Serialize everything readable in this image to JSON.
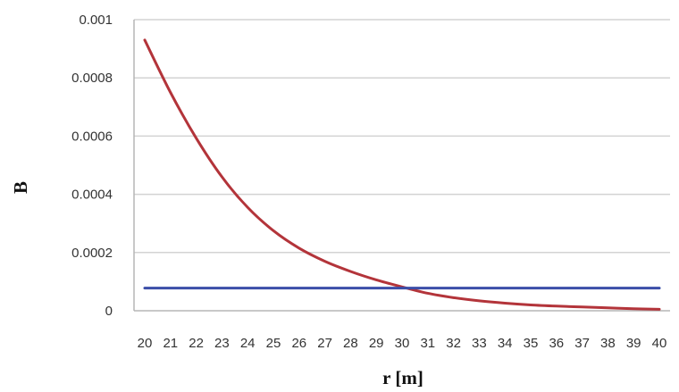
{
  "chart_data": {
    "type": "line",
    "xlabel": "r [m]",
    "ylabel": "B",
    "categories": [
      "20",
      "21",
      "22",
      "23",
      "24",
      "25",
      "26",
      "27",
      "28",
      "29",
      "30",
      "31",
      "32",
      "33",
      "34",
      "35",
      "36",
      "37",
      "38",
      "39",
      "40"
    ],
    "ylim": [
      0,
      0.001
    ],
    "yticks": [
      "0",
      "0.0002",
      "0.0004",
      "0.0006",
      "0.0008",
      "0.001"
    ],
    "grid": true,
    "legend": "none",
    "series": [
      {
        "color": "#b3343a",
        "values": [
          0.00093,
          0.00075,
          0.000593,
          0.00046,
          0.000355,
          0.000275,
          0.000215,
          0.00017,
          0.000135,
          0.000106,
          8.2e-05,
          6e-05,
          4.5e-05,
          3.4e-05,
          2.6e-05,
          2e-05,
          1.6e-05,
          1.3e-05,
          1e-05,
          7e-06,
          5e-06
        ]
      },
      {
        "color": "#3b4ea8",
        "values": [
          7.8e-05,
          7.8e-05,
          7.8e-05,
          7.8e-05,
          7.8e-05,
          7.8e-05,
          7.8e-05,
          7.8e-05,
          7.8e-05,
          7.8e-05,
          7.8e-05,
          7.8e-05,
          7.8e-05,
          7.8e-05,
          7.8e-05,
          7.8e-05,
          7.8e-05,
          7.8e-05,
          7.8e-05,
          7.8e-05,
          7.8e-05
        ]
      }
    ]
  }
}
